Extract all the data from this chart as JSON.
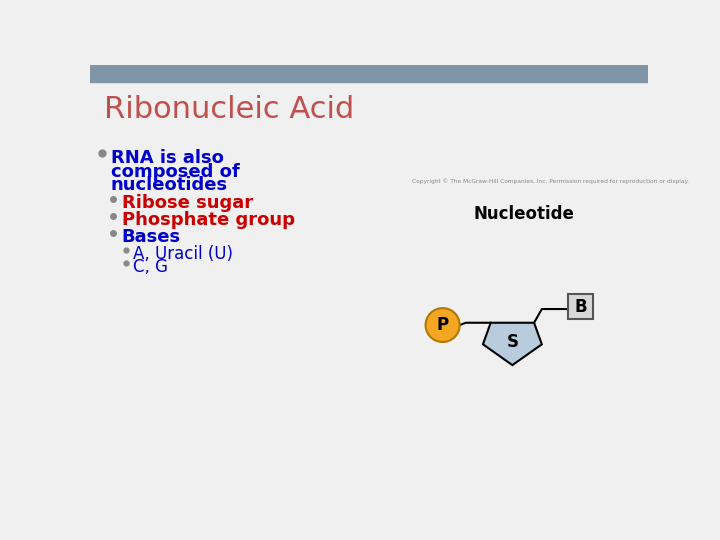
{
  "title": "Ribonucleic Acid",
  "title_color": "#c0504d",
  "bg_color": "#f0f0f0",
  "header_bar_color": "#8096a7",
  "bullet1_color": "#0000cc",
  "bullet2_color": "#cc0000",
  "bullet3_color": "#0000cc",
  "bullet1_text_line1": "RNA is also",
  "bullet1_text_line2": "composed of",
  "bullet1_text_line3": "nucleotides",
  "sub_bullet1": "Ribose sugar",
  "sub_bullet2": "Phosphate group",
  "sub_bullet3": "Bases",
  "sub_sub_bullet1": "A, Uracil (U)",
  "sub_sub_bullet2": "C, G",
  "copyright_text": "Copyright © The McGraw-Hill Companies, Inc. Permission required for reproduction or display.",
  "nucleotide_label": "Nucleotide",
  "nucleotide_label_color": "#000000",
  "P_circle_color": "#f5a623",
  "P_circle_edge": "#b07800",
  "S_pentagon_color": "#b8ccdd",
  "S_pentagon_edge": "#000000",
  "B_box_color": "#d8d8d8",
  "B_box_edge": "#555555",
  "sub_sub_color": "#0000cc"
}
